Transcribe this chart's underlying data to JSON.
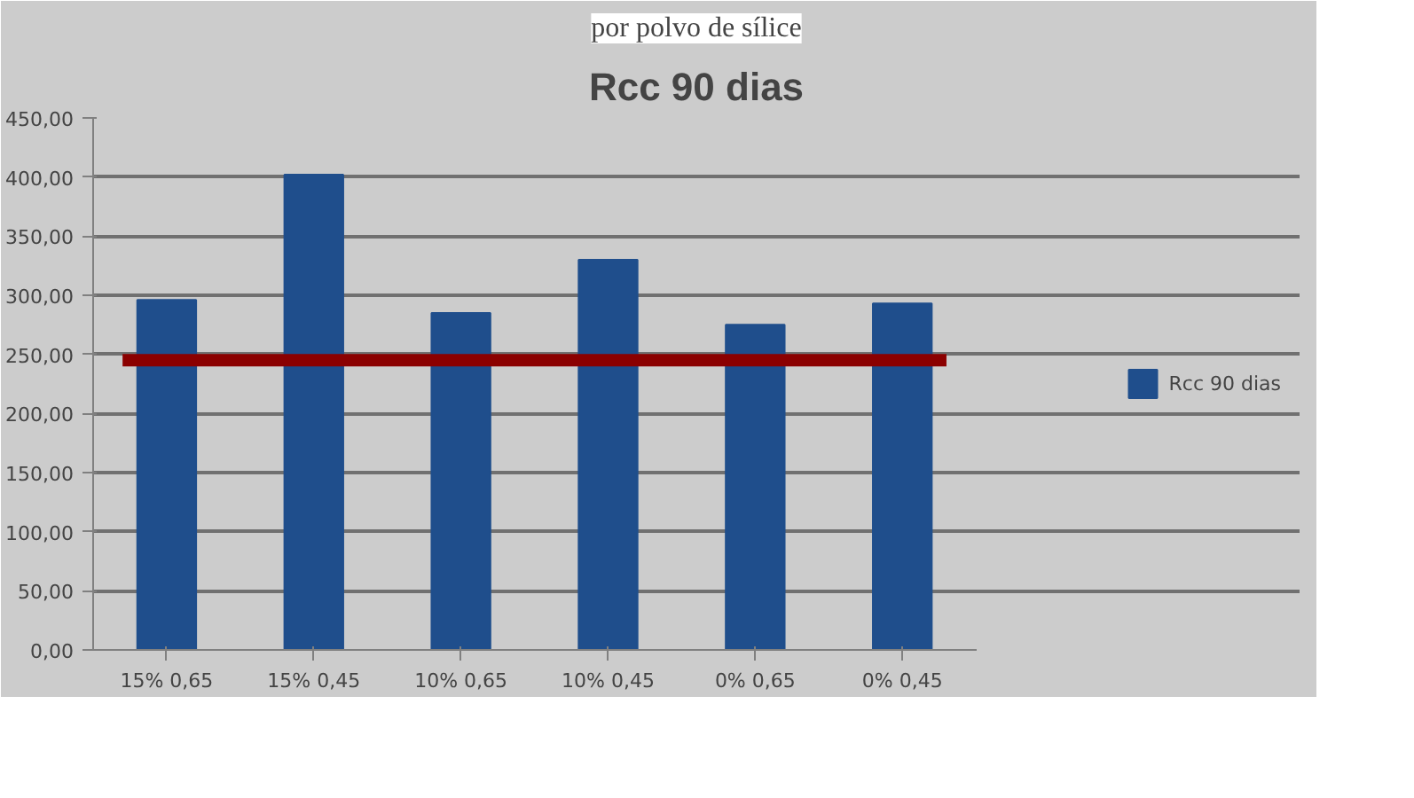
{
  "chart_data": {
    "type": "bar",
    "title": "Rcc 90 dias",
    "categories": [
      "15% 0,65",
      "15% 0,45",
      "10% 0,65",
      "10% 0,45",
      "0% 0,65",
      "0% 0,45"
    ],
    "series": [
      {
        "name": "Rcc 90 dias",
        "color": "#1f4e8c",
        "values": [
          296,
          402,
          285,
          330,
          275,
          293
        ]
      }
    ],
    "ylim": [
      0,
      450
    ],
    "yticks": [
      {
        "value": 0,
        "label": "0,00"
      },
      {
        "value": 50,
        "label": "50,00"
      },
      {
        "value": 100,
        "label": "100,00"
      },
      {
        "value": 150,
        "label": "150,00"
      },
      {
        "value": 200,
        "label": "200,00"
      },
      {
        "value": 250,
        "label": "250,00"
      },
      {
        "value": 300,
        "label": "300,00"
      },
      {
        "value": 350,
        "label": "350,00"
      },
      {
        "value": 400,
        "label": "400,00"
      },
      {
        "value": 450,
        "label": "450,00"
      }
    ],
    "ref_lines": [
      {
        "axis": "y",
        "value": 245,
        "color": "#8b0000"
      }
    ],
    "annotations": [
      "por polvo de sílice"
    ],
    "grid": "y",
    "legend": "right"
  }
}
